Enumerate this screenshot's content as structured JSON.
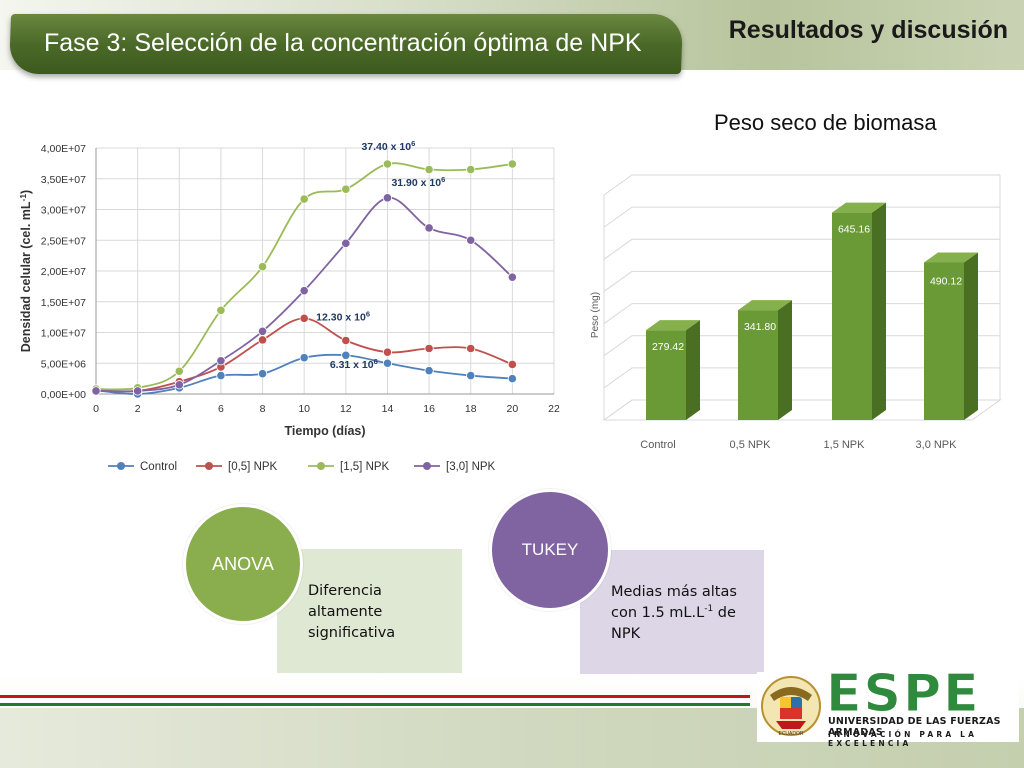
{
  "header": {
    "slide_title": "Fase 3: Selección de la concentración óptima de NPK",
    "section_title": "Resultados y discusión"
  },
  "biomass": {
    "subtitle": "Peso seco de biomasa"
  },
  "colors": {
    "banner_green": "#4b6a28",
    "control_blue": "#4f81bd",
    "npk05_red": "#c0504d",
    "npk15_green": "#9bbb59",
    "npk30_purple": "#8064a2",
    "bar_green": "#6a9a35",
    "anova_green": "#8aae4d",
    "tukey_purple": "#8064a2"
  },
  "chart_data": [
    {
      "type": "line",
      "xlabel": "Tiempo (días)",
      "ylabel": "Densidad celular (cel. mL-1)",
      "xlim": [
        0,
        22
      ],
      "ylim": [
        0,
        40000000
      ],
      "x_ticks": [
        "0",
        "2",
        "4",
        "6",
        "8",
        "10",
        "12",
        "14",
        "16",
        "18",
        "20",
        "22"
      ],
      "y_ticks": [
        "0,00E+00",
        "5,00E+06",
        "1,00E+07",
        "1,50E+07",
        "2,00E+07",
        "2,50E+07",
        "3,00E+07",
        "3,50E+07",
        "4,00E+07"
      ],
      "grid": true,
      "legend_position": "bottom",
      "x": [
        0,
        2,
        4,
        6,
        8,
        10,
        12,
        14,
        16,
        18,
        20
      ],
      "series": [
        {
          "name": "Control",
          "values": [
            600000,
            0,
            1000000,
            3000000,
            3300000,
            5900000,
            6300000,
            5000000,
            3800000,
            3000000,
            2500000
          ]
        },
        {
          "name": "[0,5] NPK",
          "values": [
            600000,
            500000,
            2000000,
            4400000,
            8800000,
            12300000,
            8700000,
            6800000,
            7400000,
            7400000,
            4800000
          ]
        },
        {
          "name": "[1,5] NPK",
          "values": [
            800000,
            1000000,
            3700000,
            13600000,
            20700000,
            31700000,
            33300000,
            37400000,
            36500000,
            36500000,
            37400000
          ]
        },
        {
          "name": "[3,0] NPK",
          "values": [
            500000,
            500000,
            1500000,
            5400000,
            10200000,
            16800000,
            24500000,
            31900000,
            27000000,
            25000000,
            19000000
          ]
        }
      ],
      "annotations": [
        {
          "text": "37.40 x 10",
          "sup": "6",
          "x": 14,
          "y": 37400000
        },
        {
          "text": "31.90 x 10",
          "sup": "6",
          "x": 14,
          "y": 31900000
        },
        {
          "text": "12.30 x 10",
          "sup": "6",
          "x": 10,
          "y": 12300000
        },
        {
          "text": "6.31 x 10",
          "sup": "6",
          "x": 12,
          "y": 6310000
        }
      ]
    },
    {
      "type": "bar",
      "title": "Peso seco de biomasa",
      "ylabel": "Peso (mg)",
      "categories": [
        "Control",
        "0,5 NPK",
        "1,5 NPK",
        "3,0 NPK"
      ],
      "values": [
        279.42,
        341.8,
        645.16,
        490.12
      ],
      "value_labels": [
        "279.42",
        "341.80",
        "645.16",
        "490.12"
      ],
      "ylim": [
        0,
        700
      ],
      "grid": true
    }
  ],
  "anova": {
    "label": "ANOVA",
    "text": "Diferencia altamente significativa"
  },
  "tukey": {
    "label": "TUKEY",
    "text_main": "Medias  más altas con 1.5 mL.L",
    "text_sup": "-1",
    "text_tail": "  de NPK"
  },
  "logo": {
    "name": "ESPE",
    "university": "UNIVERSIDAD DE LAS FUERZAS ARMADAS",
    "motto": "INNOVACIÓN PARA LA EXCELENCIA",
    "seal_text": "ECUADOR"
  }
}
